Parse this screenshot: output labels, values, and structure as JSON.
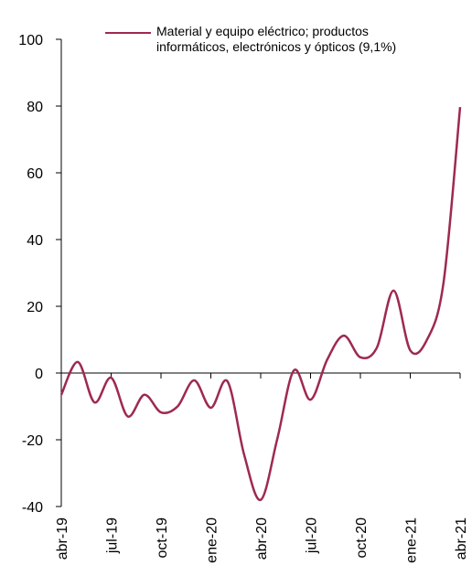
{
  "chart_data": {
    "type": "line",
    "categories": [
      "abr-19",
      null,
      null,
      "jul-19",
      null,
      null,
      "oct-19",
      null,
      null,
      "ene-20",
      null,
      null,
      "abr-20",
      null,
      null,
      "jul-20",
      null,
      null,
      "oct-20",
      null,
      null,
      "ene-21",
      null,
      null,
      "abr-21"
    ],
    "series": [
      {
        "name": "Material y equipo eléctrico; productos informáticos, electrónicos y ópticos (9,1%)",
        "color": "#9e2a4e",
        "values": [
          -6.5,
          3.3,
          -8.8,
          -1.4,
          -13,
          -6.5,
          -11.8,
          -10,
          -2.2,
          -10.4,
          -2.5,
          -24.4,
          -38,
          -19.7,
          0.8,
          -8,
          4,
          11.2,
          4.7,
          7.7,
          24.7,
          6.8,
          9.9,
          27,
          79.7
        ]
      }
    ],
    "ylim": [
      -40,
      100
    ],
    "yticks": [
      -40,
      -20,
      0,
      20,
      40,
      60,
      80,
      100
    ],
    "grid": false
  }
}
